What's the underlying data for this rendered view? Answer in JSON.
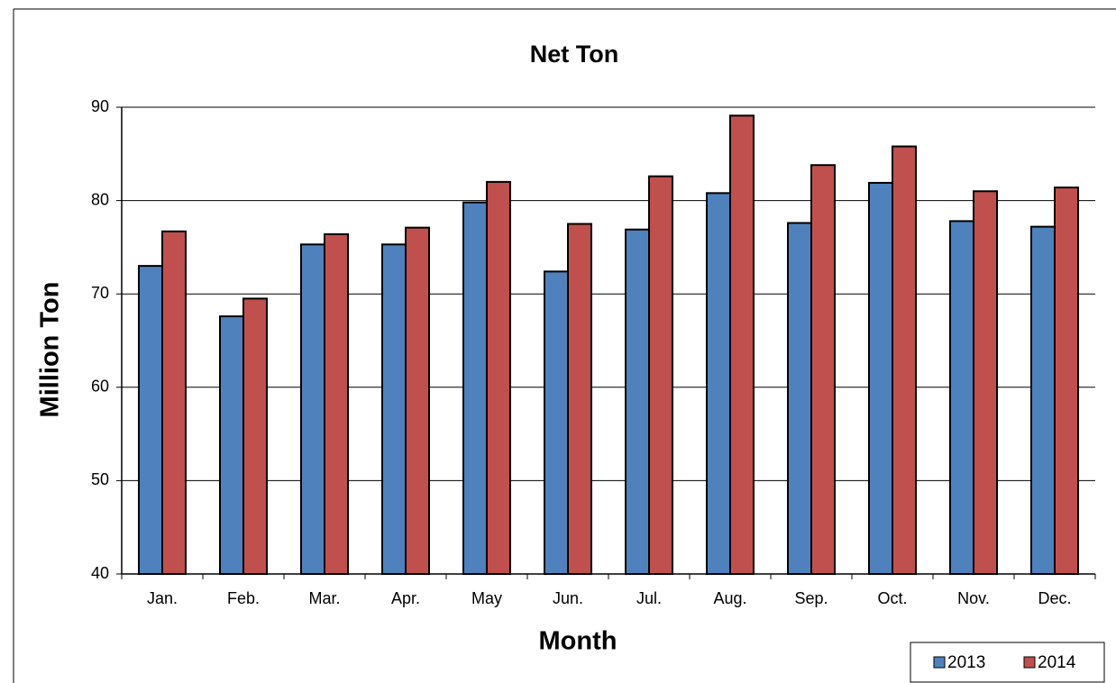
{
  "chart_data": {
    "type": "bar",
    "title": "Net Ton",
    "x_label": "Month",
    "y_label": "Million Ton",
    "categories": [
      "Jan.",
      "Feb.",
      "Mar.",
      "Apr.",
      "May",
      "Jun.",
      "Jul.",
      "Aug.",
      "Sep.",
      "Oct.",
      "Nov.",
      "Dec."
    ],
    "series": [
      {
        "name": "2013",
        "color": "#4f81bd",
        "values": [
          73.0,
          67.6,
          75.3,
          75.3,
          79.8,
          72.4,
          76.9,
          80.8,
          77.6,
          81.9,
          77.8,
          77.2
        ]
      },
      {
        "name": "2014",
        "color": "#c0504d",
        "values": [
          76.7,
          69.5,
          76.4,
          77.1,
          82.0,
          77.5,
          82.6,
          89.1,
          83.8,
          85.8,
          81.0,
          81.4
        ]
      }
    ],
    "ylim": [
      40,
      90
    ],
    "yticks": [
      40,
      50,
      60,
      70,
      80,
      90
    ],
    "grid": true,
    "legend": "lower right"
  }
}
